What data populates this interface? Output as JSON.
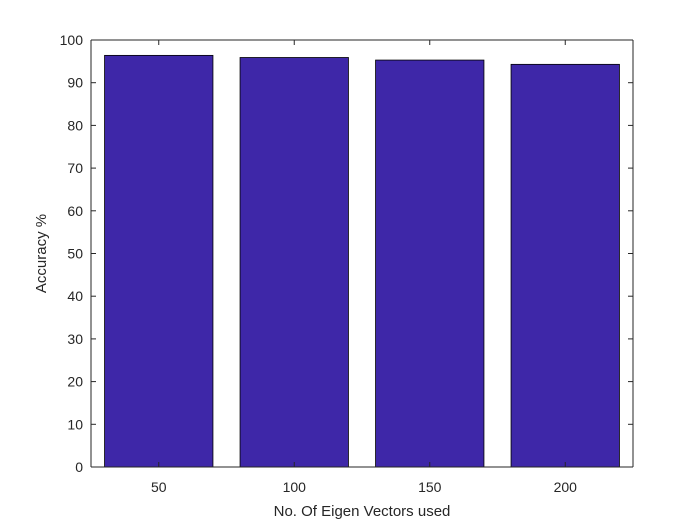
{
  "chart_data": {
    "type": "bar",
    "categories": [
      "50",
      "100",
      "150",
      "200"
    ],
    "values": [
      96.4,
      95.9,
      95.3,
      94.3
    ],
    "xlabel": "No. Of Eigen Vectors used",
    "ylabel": "Accuracy %",
    "ylim": [
      0,
      100
    ],
    "yticks": [
      0,
      10,
      20,
      30,
      40,
      50,
      60,
      70,
      80,
      90,
      100
    ],
    "grid": false,
    "legend": "none",
    "bar_color": "#3e27a8",
    "bar_edge_color": "#000000",
    "axis_color": "#262626"
  }
}
